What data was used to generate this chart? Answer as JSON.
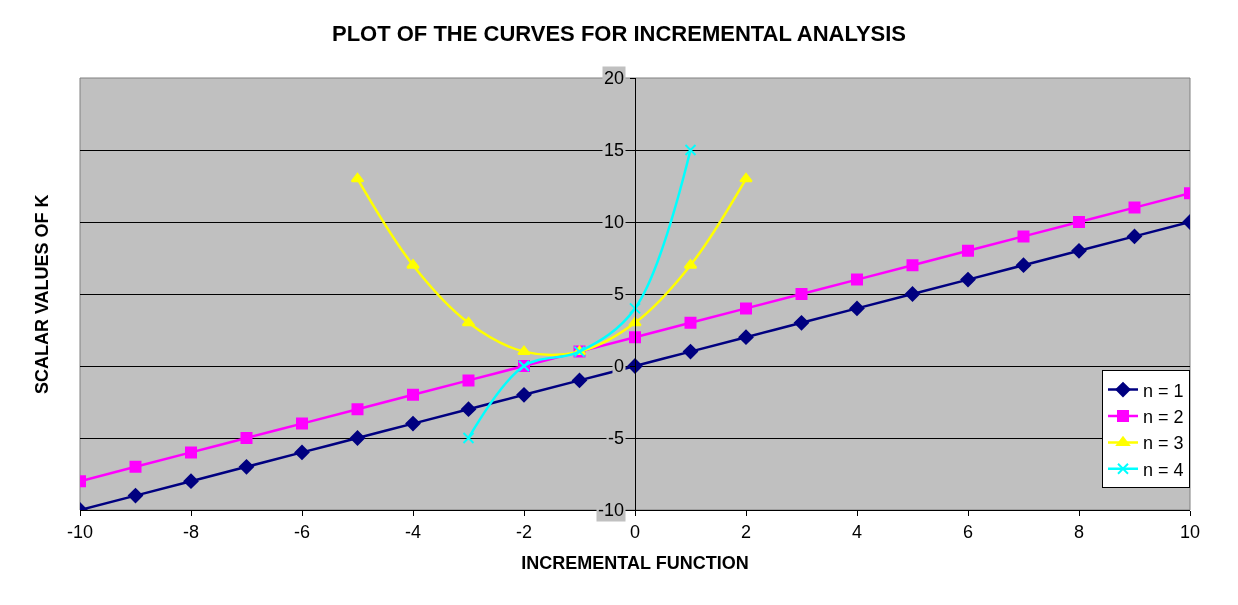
{
  "chart_data": {
    "type": "line",
    "title": "PLOT OF THE CURVES FOR INCREMENTAL ANALYSIS",
    "xlabel": "INCREMENTAL FUNCTION",
    "ylabel": "SCALAR VALUES OF K",
    "x": [
      -10,
      -9,
      -8,
      -7,
      -6,
      -5,
      -4,
      -3,
      -2,
      -1,
      0,
      1,
      2,
      3,
      4,
      5,
      6,
      7,
      8,
      9,
      10
    ],
    "series": [
      {
        "name": "n = 1",
        "color": "#000080",
        "marker": "diamond",
        "values": [
          -10,
          -9,
          -8,
          -7,
          -6,
          -5,
          -4,
          -3,
          -2,
          -1,
          0,
          1,
          2,
          3,
          4,
          5,
          6,
          7,
          8,
          9,
          10
        ]
      },
      {
        "name": "n = 2",
        "color": "#ff00ff",
        "marker": "square",
        "values": [
          -8,
          -7,
          -6,
          -5,
          -4,
          -3,
          -2,
          -1,
          0,
          1,
          2,
          3,
          4,
          5,
          6,
          7,
          8,
          9,
          10,
          11,
          12
        ]
      },
      {
        "name": "n = 3",
        "color": "#ffff00",
        "marker": "triangle",
        "values": [
          null,
          null,
          null,
          null,
          null,
          13,
          7,
          3,
          1,
          1,
          3,
          7,
          13,
          null,
          null,
          null,
          null,
          null,
          null,
          null,
          null
        ]
      },
      {
        "name": "n = 4",
        "color": "#00ffff",
        "marker": "cross",
        "values": [
          null,
          null,
          null,
          null,
          null,
          null,
          null,
          -5,
          0,
          1,
          4,
          15,
          null,
          null,
          null,
          null,
          null,
          null,
          null,
          null,
          null
        ]
      }
    ],
    "xlim": [
      -10,
      10
    ],
    "xticks": [
      -10,
      -8,
      -6,
      -4,
      -2,
      0,
      2,
      4,
      6,
      8,
      10
    ],
    "ylim": [
      -10,
      20
    ],
    "yticks": [
      -10,
      -5,
      0,
      5,
      10,
      15,
      20
    ],
    "grid": "y",
    "legend": "bottom right",
    "line_style": "solid"
  }
}
